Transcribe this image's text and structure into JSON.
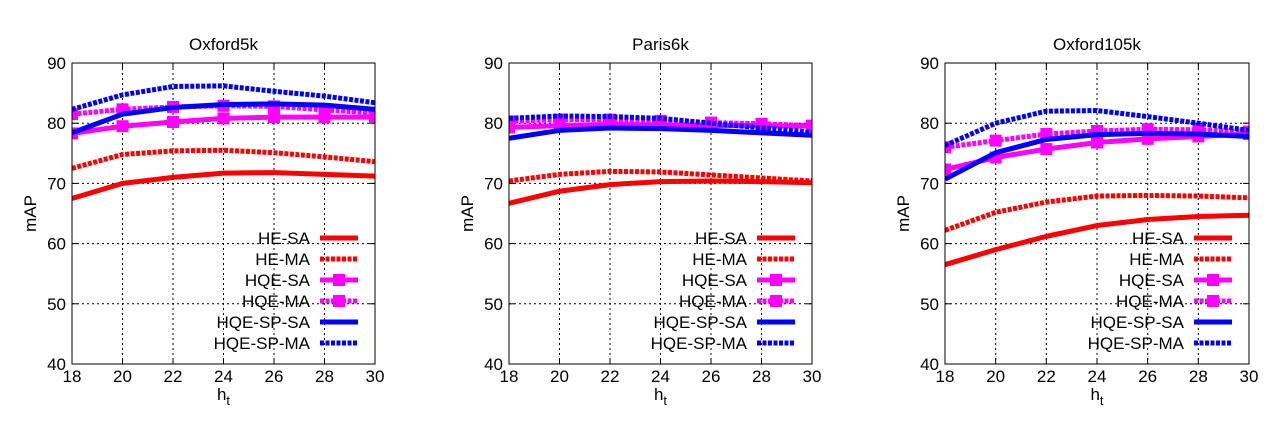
{
  "chart_data": [
    {
      "type": "line",
      "title": "Oxford5k",
      "xlabel": "h",
      "xlabel_sub": "t",
      "ylabel": "mAP",
      "xlim": [
        18,
        30
      ],
      "ylim": [
        40,
        90
      ],
      "xticks": [
        18,
        20,
        22,
        24,
        26,
        28,
        30
      ],
      "yticks": [
        40,
        50,
        60,
        70,
        80,
        90
      ],
      "grid": true,
      "legend_position": "bottom-right",
      "x": [
        18,
        20,
        22,
        24,
        26,
        28,
        30
      ],
      "series": [
        {
          "name": "HE-SA",
          "values": [
            67.5,
            70,
            71,
            71.7,
            71.8,
            71.5,
            71.2
          ]
        },
        {
          "name": "HE-MA",
          "values": [
            72.5,
            74.8,
            75.4,
            75.5,
            75.1,
            74.4,
            73.6
          ]
        },
        {
          "name": "HQE-SA",
          "values": [
            78.3,
            79.5,
            80.2,
            80.8,
            81,
            81,
            81
          ]
        },
        {
          "name": "HQE-MA",
          "values": [
            81.5,
            82.3,
            82.7,
            82.9,
            82.8,
            82.2,
            81.7
          ]
        },
        {
          "name": "HQE-SP-SA",
          "values": [
            78.4,
            81.5,
            82.6,
            83.1,
            83.2,
            83,
            82.3
          ]
        },
        {
          "name": "HQE-SP-MA",
          "values": [
            82.3,
            84.7,
            86.1,
            86.2,
            85.3,
            84.5,
            83.4
          ]
        }
      ]
    },
    {
      "type": "line",
      "title": "Paris6k",
      "xlabel": "h",
      "xlabel_sub": "t",
      "ylabel": "mAP",
      "xlim": [
        18,
        30
      ],
      "ylim": [
        40,
        90
      ],
      "xticks": [
        18,
        20,
        22,
        24,
        26,
        28,
        30
      ],
      "yticks": [
        40,
        50,
        60,
        70,
        80,
        90
      ],
      "grid": true,
      "legend_position": "bottom-right",
      "x": [
        18,
        20,
        22,
        24,
        26,
        28,
        30
      ],
      "series": [
        {
          "name": "HE-SA",
          "values": [
            66.7,
            68.7,
            69.8,
            70.3,
            70.4,
            70.3,
            70.1
          ]
        },
        {
          "name": "HE-MA",
          "values": [
            70.4,
            71.5,
            72,
            71.9,
            71.4,
            70.9,
            70.4
          ]
        },
        {
          "name": "HQE-SA",
          "values": [
            79.3,
            79.6,
            79.8,
            79.7,
            79.6,
            79.6,
            79.5
          ]
        },
        {
          "name": "HQE-MA",
          "values": [
            80.3,
            80.6,
            80.6,
            80.4,
            80.1,
            79.9,
            79.6
          ]
        },
        {
          "name": "HQE-SP-SA",
          "values": [
            77.5,
            78.8,
            79.2,
            79.1,
            78.8,
            78.4,
            78
          ]
        },
        {
          "name": "HQE-SP-MA",
          "values": [
            80.8,
            81.2,
            81.1,
            80.8,
            80,
            79.2,
            78.5
          ]
        }
      ]
    },
    {
      "type": "line",
      "title": "Oxford105k",
      "xlabel": "h",
      "xlabel_sub": "t",
      "ylabel": "mAP",
      "xlim": [
        18,
        30
      ],
      "ylim": [
        40,
        90
      ],
      "xticks": [
        18,
        20,
        22,
        24,
        26,
        28,
        30
      ],
      "yticks": [
        40,
        50,
        60,
        70,
        80,
        90
      ],
      "grid": true,
      "legend_position": "bottom-right",
      "x": [
        18,
        20,
        22,
        24,
        26,
        28,
        30
      ],
      "series": [
        {
          "name": "HE-SA",
          "values": [
            56.5,
            59,
            61.2,
            63,
            64,
            64.5,
            64.7
          ]
        },
        {
          "name": "HE-MA",
          "values": [
            62.2,
            65.2,
            66.9,
            67.9,
            68,
            67.9,
            67.6
          ]
        },
        {
          "name": "HQE-SA",
          "values": [
            72.3,
            74.3,
            75.7,
            76.8,
            77.4,
            77.8,
            78.2
          ]
        },
        {
          "name": "HQE-MA",
          "values": [
            76,
            77.1,
            78.2,
            78.7,
            79,
            78.9,
            78.6
          ]
        },
        {
          "name": "HQE-SP-SA",
          "values": [
            70.7,
            75.1,
            77.3,
            78.1,
            78.3,
            78.2,
            77.8
          ]
        },
        {
          "name": "HQE-SP-MA",
          "values": [
            76.3,
            80,
            82,
            82.1,
            81.1,
            80,
            78.8
          ]
        }
      ]
    }
  ],
  "series_styles": [
    {
      "color": "#ff0000",
      "dashed": false,
      "marker": false
    },
    {
      "color": "#ff0000",
      "dashed": true,
      "marker": false
    },
    {
      "color": "#ff00ff",
      "dashed": false,
      "marker": true
    },
    {
      "color": "#ff00ff",
      "dashed": true,
      "marker": true
    },
    {
      "color": "#0000ff",
      "dashed": false,
      "marker": false
    },
    {
      "color": "#0000ff",
      "dashed": true,
      "marker": false
    }
  ]
}
